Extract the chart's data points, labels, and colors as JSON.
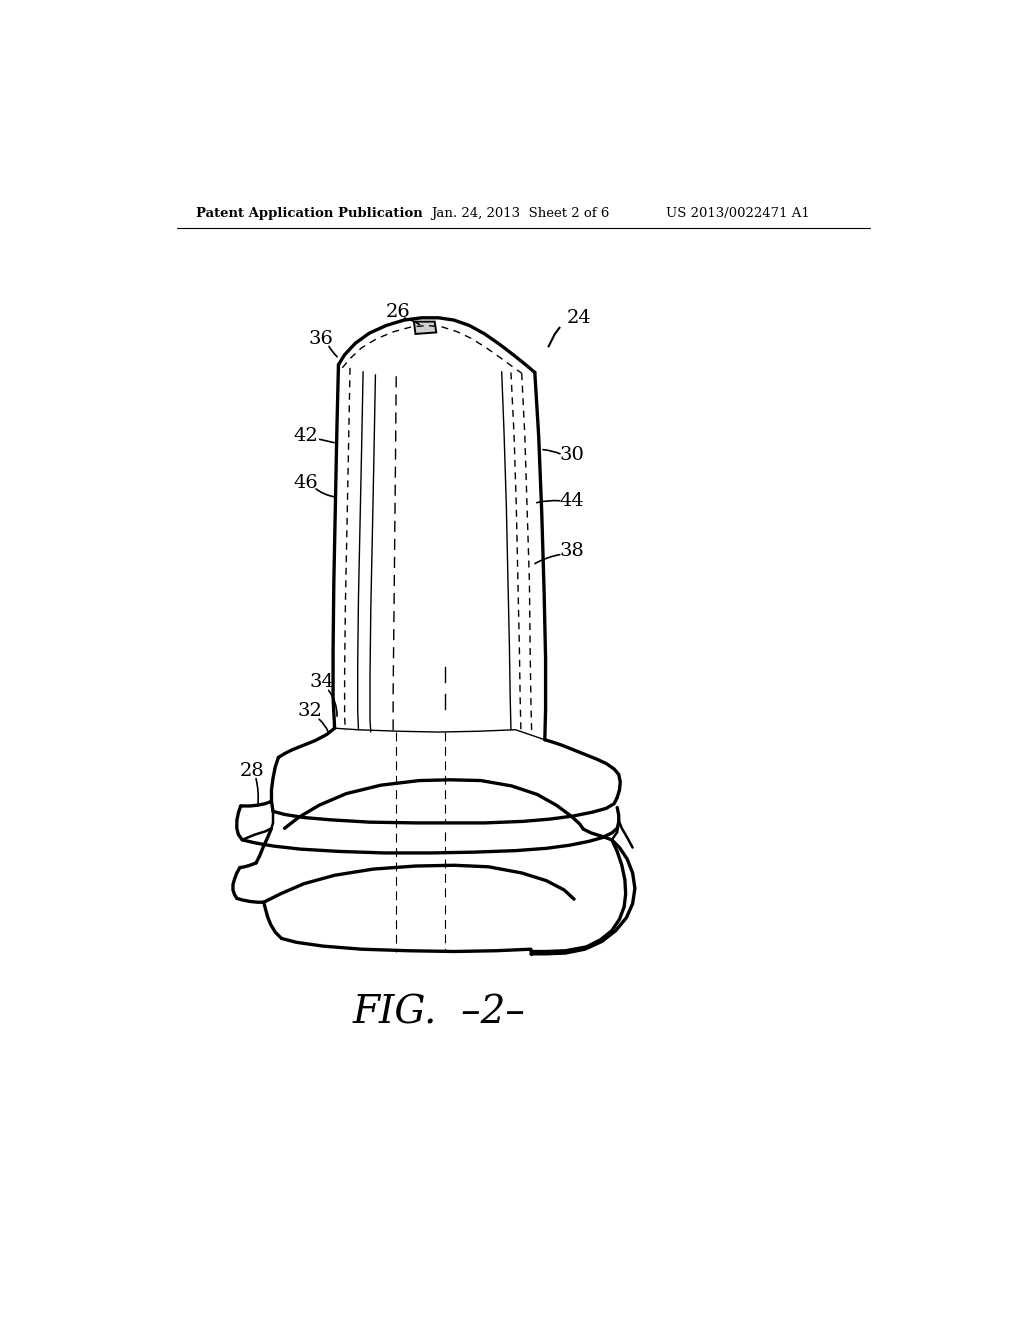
{
  "background_color": "#ffffff",
  "header_left": "Patent Application Publication",
  "header_center": "Jan. 24, 2013  Sheet 2 of 6",
  "header_right": "US 2013/0022471 A1",
  "figure_label": "FIG.  –2–",
  "lw_main": 1.8,
  "lw_thick": 2.4,
  "label_fontsize": 14
}
